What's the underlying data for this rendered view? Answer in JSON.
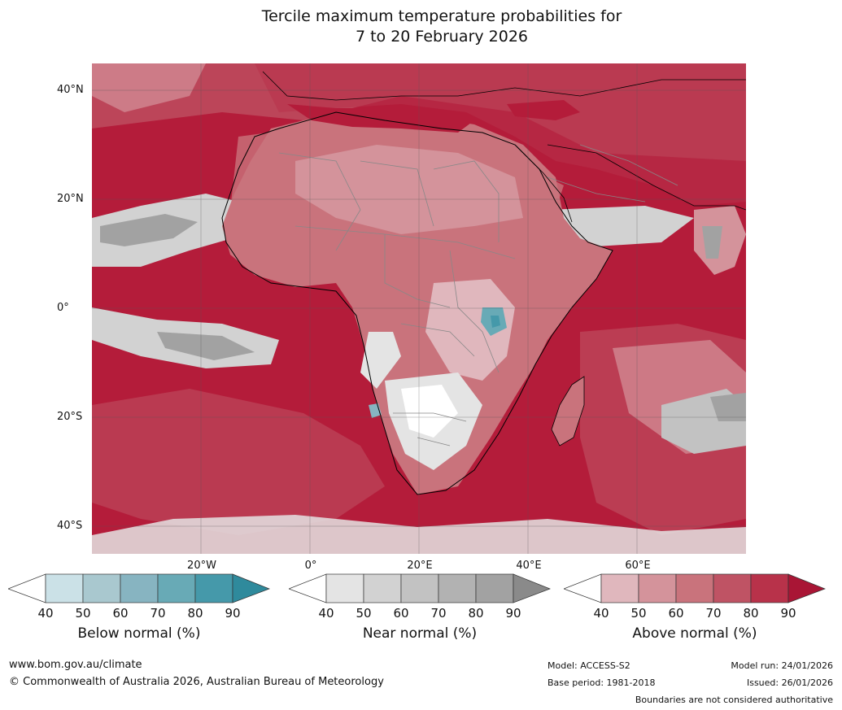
{
  "title": {
    "line1": "Tercile maximum temperature probabilities for",
    "line2": "7 to 20 February 2026"
  },
  "axes": {
    "lat_labels": [
      "40°N",
      "20°N",
      "0°",
      "20°S",
      "40°S"
    ],
    "lon_labels": [
      "20°W",
      "0°",
      "20°E",
      "40°E",
      "60°E"
    ]
  },
  "colorbars": [
    {
      "name": "below",
      "title": "Below normal (%)",
      "ticks": [
        "40",
        "50",
        "60",
        "70",
        "80",
        "90"
      ],
      "colors": [
        "#ffffff",
        "#cbe1e7",
        "#a9c8cf",
        "#87b4c1",
        "#68aab6",
        "#4599aa",
        "#2f8a9c"
      ]
    },
    {
      "name": "near",
      "title": "Near normal (%)",
      "ticks": [
        "40",
        "50",
        "60",
        "70",
        "80",
        "90"
      ],
      "colors": [
        "#ffffff",
        "#e4e4e4",
        "#d2d2d2",
        "#c2c2c2",
        "#b2b2b2",
        "#a2a2a2",
        "#8a8a8a"
      ]
    },
    {
      "name": "above",
      "title": "Above normal (%)",
      "ticks": [
        "40",
        "50",
        "60",
        "70",
        "80",
        "90"
      ],
      "colors": [
        "#ffffff",
        "#e0b7bd",
        "#d4939b",
        "#c9737c",
        "#bf5364",
        "#b8324a",
        "#a91535"
      ]
    }
  ],
  "footer": {
    "website": "www.bom.gov.au/climate",
    "copyright": "© Commonwealth of Australia 2026, Australian Bureau of Meteorology",
    "model": "Model: ACCESS-S2",
    "base_period": "Base period: 1981-2018",
    "model_run": "Model run: 24/01/2026",
    "issued": "Issued: 26/01/2026",
    "disclaimer": "Boundaries are not considered authoritative"
  }
}
